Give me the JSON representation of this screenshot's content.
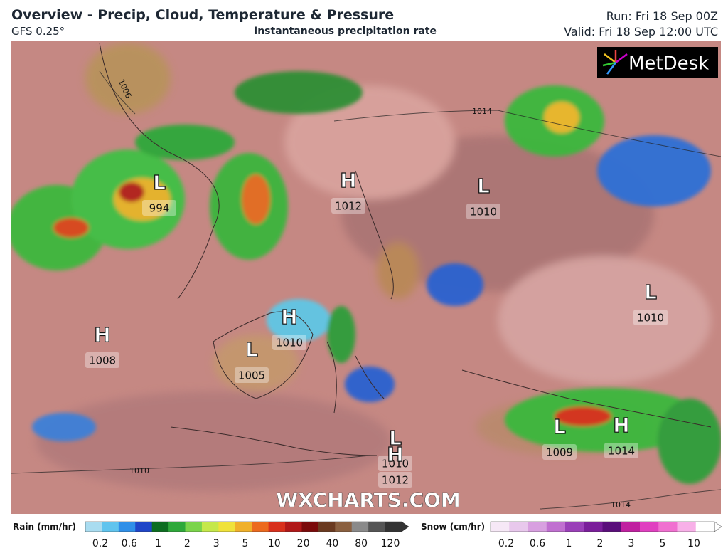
{
  "header": {
    "title": "Overview - Precip, Cloud, Temperature & Pressure",
    "model": "GFS 0.25°",
    "product": "Instantaneous precipitation rate",
    "run": "Run: Fri 18 Sep 00Z",
    "valid": "Valid: Fri 18 Sep 12:00 UTC"
  },
  "logo": "MetDesk",
  "watermark": "WXCHARTS.COM",
  "pressure_centers": [
    {
      "letter": "L",
      "value": 994
    },
    {
      "letter": "H",
      "value": 1012
    },
    {
      "letter": "L",
      "value": 1010
    },
    {
      "letter": "L",
      "value": 1010
    },
    {
      "letter": "H",
      "value": 1010
    },
    {
      "letter": "H",
      "value": 1008
    },
    {
      "letter": "L",
      "value": 1005
    },
    {
      "letter": "L",
      "value": 1009
    },
    {
      "letter": "H",
      "value": 1014
    },
    {
      "letter": "L",
      "value": 1010
    },
    {
      "letter": "H",
      "value": 1012
    }
  ],
  "isobar_labels": [
    1006,
    1014,
    1010,
    1014
  ],
  "legend": {
    "rain": {
      "title": "Rain (mm/hr)",
      "ticks": [
        0.2,
        0.6,
        1,
        2,
        3,
        5,
        10,
        20,
        40,
        80,
        120
      ]
    },
    "snow": {
      "title": "Snow (cm/hr)",
      "ticks": [
        0.2,
        0.6,
        1,
        2,
        3,
        5,
        10
      ]
    }
  }
}
